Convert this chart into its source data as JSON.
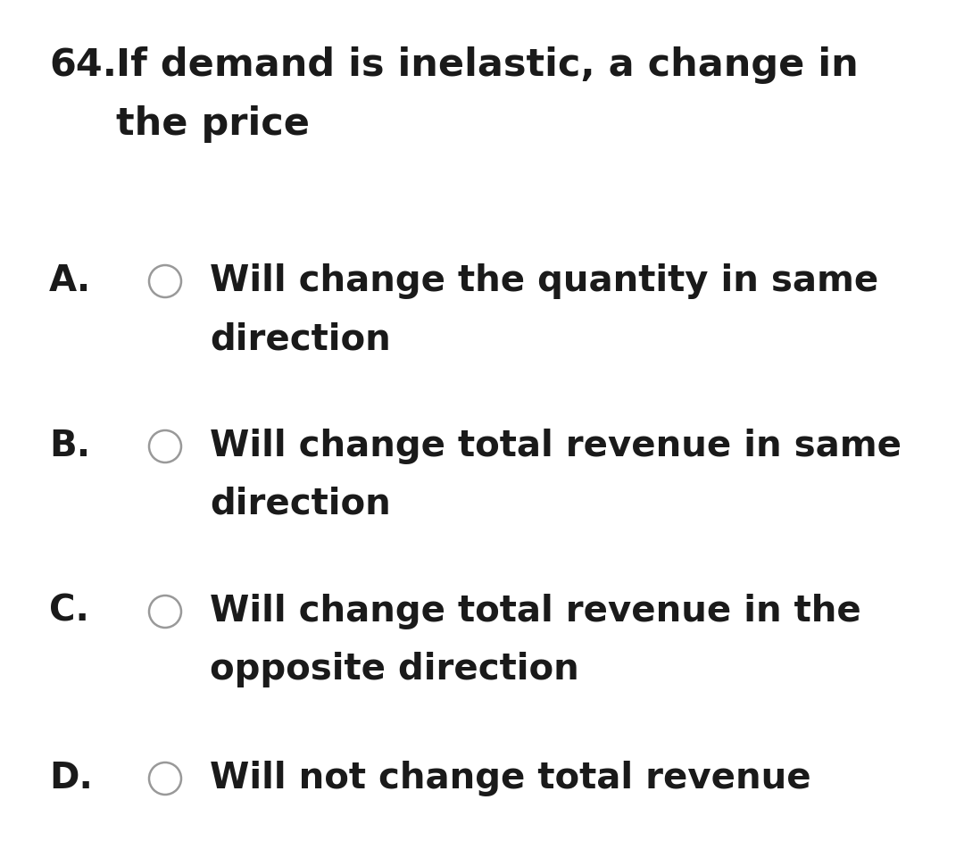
{
  "background_color": "#ffffff",
  "question_number": "64.",
  "question_text_line1": "If demand is inelastic, a change in",
  "question_text_line2": "the price",
  "options": [
    {
      "letter": "A.",
      "line1": "Will change the quantity in same",
      "line2": "direction"
    },
    {
      "letter": "B.",
      "line1": "Will change total revenue in same",
      "line2": "direction"
    },
    {
      "letter": "C.",
      "line1": "Will change total revenue in the",
      "line2": "opposite direction"
    },
    {
      "letter": "D.",
      "line1": "Will not change total revenue",
      "line2": null
    }
  ],
  "font_color": "#1a1a1a",
  "font_size_question": 31,
  "font_size_options": 29,
  "circle_color": "#999999",
  "circle_linewidth": 1.8
}
